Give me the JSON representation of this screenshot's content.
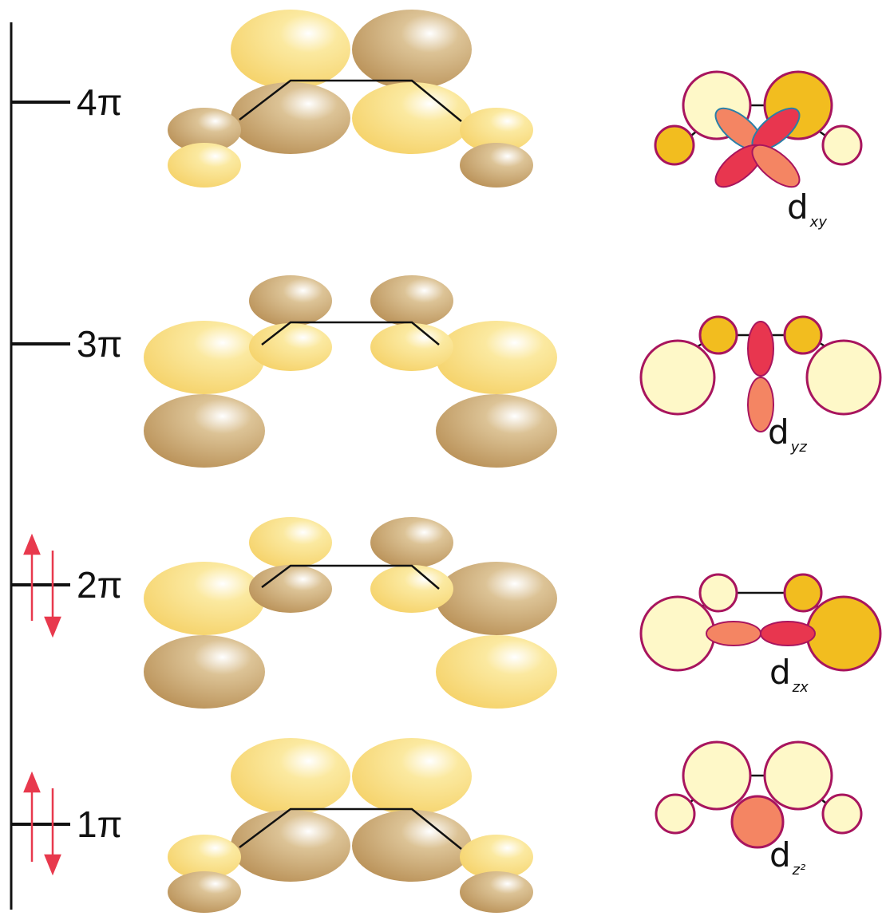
{
  "levels": [
    {
      "label": "4π",
      "electrons": false,
      "d_main": "d",
      "d_sub": "xy"
    },
    {
      "label": "3π",
      "electrons": false,
      "d_main": "d",
      "d_sub": "yz"
    },
    {
      "label": "2π",
      "electrons": true,
      "d_main": "d",
      "d_sub": "zx"
    },
    {
      "label": "1π",
      "electrons": true,
      "d_main": "d",
      "d_sub": "z²"
    }
  ],
  "colors": {
    "lobe_light": "#f7d86b",
    "lobe_dark": "#c19a5e",
    "circle_fill_light": "#fef8c8",
    "circle_fill_gold": "#f2bd1f",
    "circle_stroke": "#a8155e",
    "d_lobe_red": "#e8364f",
    "d_lobe_salmon": "#f48563",
    "d_xy_outline": "#2a7fa8",
    "arrow": "#e8394d",
    "line": "#111111"
  }
}
